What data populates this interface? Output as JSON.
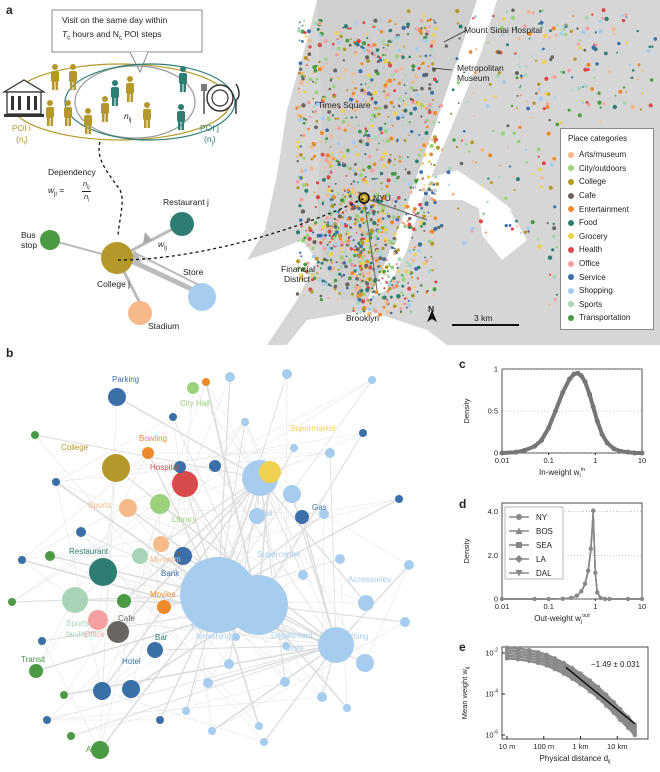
{
  "panels": {
    "a": "a",
    "b": "b",
    "c": "c",
    "d": "d",
    "e": "e"
  },
  "schematic": {
    "callout_line1": "Visit on the same day within",
    "callout_line2": "T",
    "callout_line2_sub": "c",
    "callout_line2_rest": " hours and N",
    "callout_line2_sub2": "c",
    "callout_line2_end": " POI steps",
    "nij": "n",
    "nij_sub": "ij",
    "poi_i": "POI i",
    "poi_i_n": "(n",
    "poi_i_n_sub": "i",
    "poi_i_n_end": ")",
    "poi_j": "POI j",
    "poi_j_n": "(n",
    "poi_j_n_sub": "j",
    "poi_j_n_end": ")",
    "dependency": "Dependency",
    "wji": "w",
    "wji_sub": "ji",
    "eq": "=",
    "frac_num": "n",
    "frac_num_sub": "ij",
    "frac_den": "n",
    "frac_den_sub": "i",
    "restaurant": "Restaurant j",
    "bus_stop_1": "Bus",
    "bus_stop_2": "stop",
    "wij": "w",
    "wij_sub": "ij",
    "college": "College j",
    "store": "Store",
    "stadium": "Stadium"
  },
  "map": {
    "mount_sinai": "Mount Sinai Hospital",
    "metropolitan": "Metropolitan",
    "museum": "Museum",
    "times_square": "Times Square",
    "nyu": "NYU",
    "financial_1": "Financial",
    "financial_2": "District",
    "brooklyn": "Brooklyn",
    "north": "N",
    "scale": "3 km"
  },
  "legend": {
    "title": "Place categories",
    "items": [
      {
        "label": "Arts/museum",
        "color": "#f7b98a"
      },
      {
        "label": "City/outdoors",
        "color": "#9bd17a"
      },
      {
        "label": "College",
        "color": "#b5982a"
      },
      {
        "label": "Cafe",
        "color": "#6a6560"
      },
      {
        "label": "Entertainment",
        "color": "#ee8a2c"
      },
      {
        "label": "Food",
        "color": "#2e7d72"
      },
      {
        "label": "Grocery",
        "color": "#f0d14f"
      },
      {
        "label": "Health",
        "color": "#d94b4b"
      },
      {
        "label": "Office",
        "color": "#f4a0a0"
      },
      {
        "label": "Service",
        "color": "#3b6fa8"
      },
      {
        "label": "Shopping",
        "color": "#a6cdee"
      },
      {
        "label": "Sports",
        "color": "#a8d5b8"
      },
      {
        "label": "Transportation",
        "color": "#4c9a45"
      }
    ]
  },
  "network_labels": [
    {
      "text": "Parking",
      "color": "#3b6fa8"
    },
    {
      "text": "City Hall",
      "color": "#9bd17a"
    },
    {
      "text": "Bowling",
      "color": "#ee8a2c"
    },
    {
      "text": "College",
      "color": "#b5982a"
    },
    {
      "text": "Hospital",
      "color": "#d94b4b"
    },
    {
      "text": "Supermarket",
      "color": "#f0d14f"
    },
    {
      "text": "Sports",
      "color": "#f7b98a"
    },
    {
      "text": "Library",
      "color": "#9bd17a"
    },
    {
      "text": "Mall",
      "color": "#a6cdee"
    },
    {
      "text": "Gas",
      "color": "#3b6fa8"
    },
    {
      "text": "Museum",
      "color": "#f7b98a"
    },
    {
      "text": "Restaurant",
      "color": "#2e7d72"
    },
    {
      "text": "Bank",
      "color": "#3b6fa8"
    },
    {
      "text": "Supercenter",
      "color": "#a6cdee"
    },
    {
      "text": "Accessories",
      "color": "#a6cdee"
    },
    {
      "text": "Movies",
      "color": "#ee8a2c"
    },
    {
      "text": "Sports",
      "color": "#a8d5b8"
    },
    {
      "text": "facility",
      "color": "#a8d5b8"
    },
    {
      "text": "Cafe",
      "color": "#6a6560"
    },
    {
      "text": "Home",
      "color": "#a6cdee"
    },
    {
      "text": "furnishing",
      "color": "#a6cdee"
    },
    {
      "text": "Department",
      "color": "#a6cdee"
    },
    {
      "text": "store",
      "color": "#a6cdee"
    },
    {
      "text": "Office",
      "color": "#f4a0a0"
    },
    {
      "text": "Bar",
      "color": "#2e7d72"
    },
    {
      "text": "Clothing",
      "color": "#a6cdee"
    },
    {
      "text": "Transit",
      "color": "#4c9a45"
    },
    {
      "text": "Hotel",
      "color": "#3b6fa8"
    },
    {
      "text": "Airport",
      "color": "#4c9a45"
    }
  ],
  "chart_data": [
    {
      "type": "line",
      "panel": "c",
      "ylabel": "Density",
      "xlabel": "In-weight w",
      "xlabel_sub": "i",
      "xlabel_sup": "in",
      "xscale": "log",
      "xticks": [
        "0.01",
        "0.1",
        "1",
        "10"
      ],
      "yticks": [
        "0",
        "0.5",
        "1"
      ],
      "xlim": [
        0.01,
        10
      ],
      "ylim": [
        0,
        1
      ],
      "x": [
        0.01,
        0.02,
        0.03,
        0.05,
        0.07,
        0.1,
        0.14,
        0.2,
        0.28,
        0.35,
        0.42,
        0.5,
        0.6,
        0.75,
        0.9,
        1.1,
        1.4,
        1.8,
        2.5,
        3.5,
        5,
        7,
        10
      ],
      "y": [
        0.0,
        0.01,
        0.03,
        0.08,
        0.15,
        0.3,
        0.5,
        0.72,
        0.88,
        0.94,
        0.95,
        0.92,
        0.85,
        0.7,
        0.55,
        0.38,
        0.22,
        0.12,
        0.05,
        0.02,
        0.01,
        0.0,
        0.0
      ]
    },
    {
      "type": "line",
      "panel": "d",
      "ylabel": "Density",
      "xlabel": "Out-weight w",
      "xlabel_sub": "j",
      "xlabel_sup": "out",
      "xscale": "log",
      "xticks": [
        "0.01",
        "0.1",
        "1",
        "10"
      ],
      "yticks": [
        "0",
        "2.0",
        "4.0"
      ],
      "xlim": [
        0.01,
        10
      ],
      "ylim": [
        0,
        4.4
      ],
      "legend": [
        "NY",
        "BOS",
        "SEA",
        "LA",
        "DAL"
      ],
      "x": [
        0.01,
        0.05,
        0.1,
        0.2,
        0.3,
        0.4,
        0.5,
        0.6,
        0.7,
        0.8,
        0.9,
        1.0,
        1.1,
        1.3,
        1.6,
        2,
        5,
        10
      ],
      "y": [
        0.0,
        0.0,
        0.0,
        0.01,
        0.05,
        0.15,
        0.35,
        0.7,
        1.3,
        2.3,
        4.05,
        1.2,
        0.3,
        0.05,
        0.0,
        0.0,
        0.0,
        0.0
      ]
    },
    {
      "type": "line",
      "panel": "e",
      "ylabel": "Mean weight w",
      "ylabel_sub": "ij",
      "xlabel": "Physical distance d",
      "xlabel_sub": "ij",
      "xscale": "log",
      "yscale": "log",
      "xticks": [
        "10 m",
        "100 m",
        "1 km",
        "10 km"
      ],
      "yticks": [
        "10",
        "10",
        "10"
      ],
      "ytick_sups": [
        "-2",
        "-4",
        "-6"
      ],
      "annotation": "−1.49 ± 0.031",
      "x_m": [
        10,
        20,
        40,
        70,
        120,
        200,
        350,
        600,
        1000,
        1800,
        3000,
        5000,
        8000,
        12000,
        20000,
        30000
      ],
      "y": [
        0.01,
        0.009,
        0.0075,
        0.006,
        0.0045,
        0.003,
        0.0018,
        0.001,
        0.00055,
        0.00025,
        0.00012,
        5e-05,
        2.2e-05,
        1e-05,
        4e-06,
        1.8e-06
      ]
    }
  ]
}
